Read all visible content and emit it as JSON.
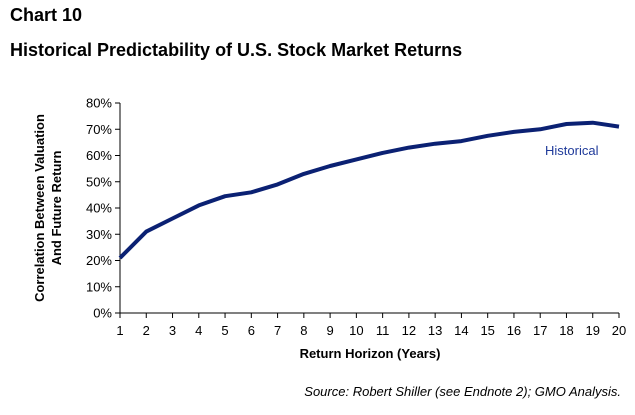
{
  "header": {
    "chart_number": "Chart 10",
    "title": "Historical Predictability of U.S. Stock Market Returns"
  },
  "footer": {
    "source": "Source: Robert Shiller (see Endnote 2); GMO Analysis."
  },
  "colors": {
    "series": "#0b2173",
    "series_label": "#1f3a9a",
    "axis": "#000000"
  },
  "chart_data": {
    "type": "line",
    "title": "Historical Predictability of U.S. Stock Market Returns",
    "xlabel": "Return Horizon (Years)",
    "ylabel_lines": [
      "Correlation Between Valuation",
      "And Future Return"
    ],
    "x": [
      1,
      2,
      3,
      4,
      5,
      6,
      7,
      8,
      9,
      10,
      11,
      12,
      13,
      14,
      15,
      16,
      17,
      18,
      19,
      20
    ],
    "x_tick_labels": [
      "1",
      "2",
      "3",
      "4",
      "5",
      "6",
      "7",
      "8",
      "9",
      "10",
      "11",
      "12",
      "13",
      "14",
      "15",
      "16",
      "17",
      "18",
      "19",
      "20"
    ],
    "ylim": [
      0,
      80
    ],
    "y_ticks": [
      0,
      10,
      20,
      30,
      40,
      50,
      60,
      70,
      80
    ],
    "y_tick_labels": [
      "0%",
      "10%",
      "20%",
      "30%",
      "40%",
      "50%",
      "60%",
      "70%",
      "80%"
    ],
    "grid": false,
    "series": [
      {
        "name": "Historical",
        "values": [
          21,
          31,
          36,
          41,
          44.5,
          46,
          49,
          53,
          56,
          58.5,
          61,
          63,
          64.5,
          65.5,
          67.5,
          69,
          70,
          72,
          72.5,
          71
        ]
      }
    ]
  }
}
